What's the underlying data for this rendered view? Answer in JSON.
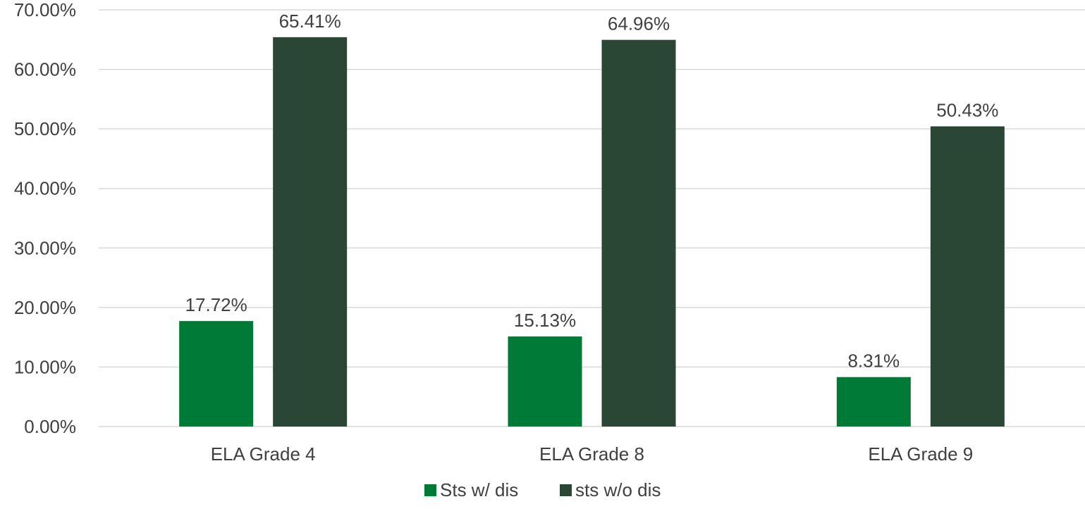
{
  "chart_data": {
    "type": "bar",
    "title": "",
    "xlabel": "",
    "ylabel": "",
    "categories": [
      "ELA Grade 4",
      "ELA Grade 8",
      "ELA Grade 9"
    ],
    "series": [
      {
        "name": "Sts w/ dis",
        "values": [
          17.72,
          15.13,
          8.31
        ],
        "labels": [
          "17.72%",
          "15.13%",
          "8.31%"
        ],
        "color": "#007a37"
      },
      {
        "name": "sts w/o dis",
        "values": [
          65.41,
          64.96,
          50.43
        ],
        "labels": [
          "65.41%",
          "64.96%",
          "50.43%"
        ],
        "color": "#2a4736"
      }
    ],
    "ylim": [
      0,
      70
    ],
    "y_ticks": [
      0,
      10,
      20,
      30,
      40,
      50,
      60,
      70
    ],
    "y_tick_labels": [
      "0.00%",
      "10.00%",
      "20.00%",
      "30.00%",
      "40.00%",
      "50.00%",
      "60.00%",
      "70.00%"
    ],
    "grid": true,
    "legend_position": "bottom",
    "grid_color": "#d9d9d9",
    "text_color": "#404040"
  }
}
